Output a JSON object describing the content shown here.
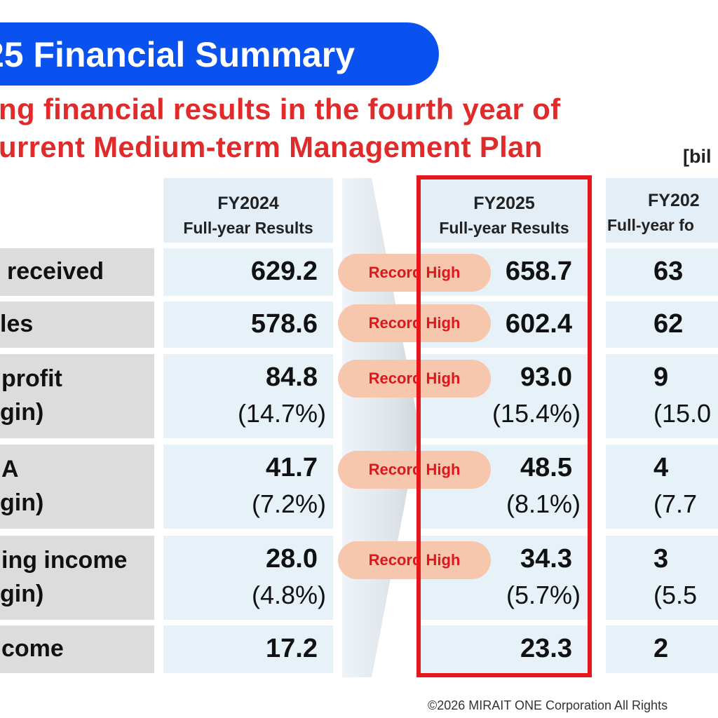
{
  "title": "25 Financial Summary",
  "subtitle": {
    "line1": "ng financial results in the fourth year of",
    "line2": "urrent Medium-term Management Plan"
  },
  "unit_label": "[bil",
  "columns": {
    "fy2024": {
      "year": "FY2024",
      "label": "Full-year Results"
    },
    "fy2025": {
      "year": "FY2025",
      "label": "Full-year Results"
    },
    "fy2026": {
      "year": "FY202",
      "label": "Full-year fo"
    }
  },
  "rows": [
    {
      "label_lines": [
        "received"
      ],
      "fy2024": "629.2",
      "fy2025": "658.7",
      "fy2026": "63",
      "badge": "Record High"
    },
    {
      "label_lines": [
        "les"
      ],
      "fy2024": "578.6",
      "fy2025": "602.4",
      "fy2026": "62",
      "badge": "Record High"
    },
    {
      "label_lines": [
        "profit",
        "gin)"
      ],
      "fy2024": "84.8",
      "fy2024_pct": "(14.7%)",
      "fy2025": "93.0",
      "fy2025_pct": "(15.4%)",
      "fy2026": "9",
      "fy2026_pct": "(15.0",
      "badge": "Record High"
    },
    {
      "label_lines": [
        "A",
        "gin)"
      ],
      "fy2024": "41.7",
      "fy2024_pct": "(7.2%)",
      "fy2025": "48.5",
      "fy2025_pct": "(8.1%)",
      "fy2026": "4",
      "fy2026_pct": "(7.7",
      "badge": "Record High"
    },
    {
      "label_lines": [
        "ing income",
        "gin)"
      ],
      "fy2024": "28.0",
      "fy2024_pct": "(4.8%)",
      "fy2025": "34.3",
      "fy2025_pct": "(5.7%)",
      "fy2026": "3",
      "fy2026_pct": "(5.5",
      "badge": "Record High"
    },
    {
      "label_lines": [
        "come"
      ],
      "fy2024": "17.2",
      "fy2025": "23.3",
      "fy2026": "2"
    }
  ],
  "footer": "©2026 MIRAIT ONE Corporation All Rights",
  "colors": {
    "title_bg": "#0a52ef",
    "subtitle": "#e12b2b",
    "highlight_frame": "#e8161c",
    "badge_bg": "#f6c6ad",
    "badge_text": "#e0161e",
    "cell_bg": "#e7f1f8",
    "label_bg": "#dcdcdc"
  }
}
